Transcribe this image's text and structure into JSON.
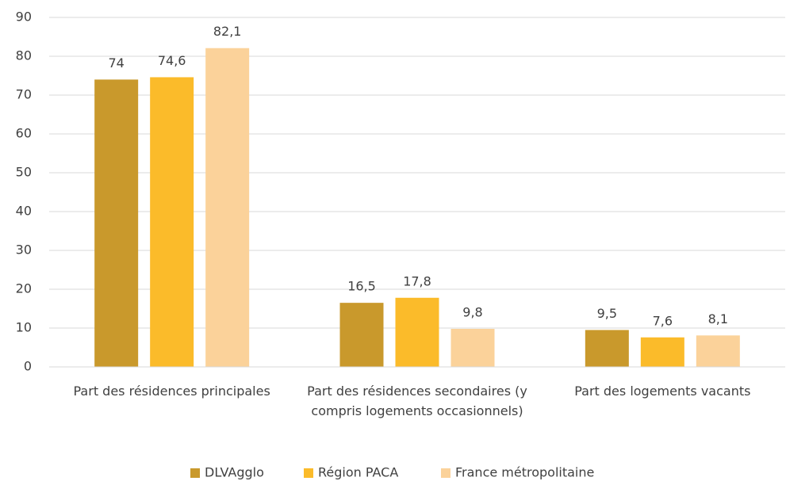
{
  "chart_data": {
    "type": "bar",
    "categories": [
      "Part des résidences principales",
      "Part des résidences secondaires (y compris logements occasionnels)",
      "Part des logements vacants"
    ],
    "series": [
      {
        "name": "DLVAgglo",
        "color": "#c9992c",
        "values": [
          74,
          16.5,
          9.5
        ],
        "value_labels": [
          "74",
          "16,5",
          "9,5"
        ]
      },
      {
        "name": "Région PACA",
        "color": "#fbbb2a",
        "values": [
          74.6,
          17.8,
          7.6
        ],
        "value_labels": [
          "74,6",
          "17,8",
          "7,6"
        ]
      },
      {
        "name": "France métropolitaine",
        "color": "#fbd29a",
        "values": [
          82.1,
          9.8,
          8.1
        ],
        "value_labels": [
          "82,1",
          "9,8",
          "8,1"
        ]
      }
    ],
    "ylim": [
      0,
      90
    ],
    "yticks": [
      0,
      10,
      20,
      30,
      40,
      50,
      60,
      70,
      80,
      90
    ],
    "grid": true,
    "legend": "bottom"
  }
}
